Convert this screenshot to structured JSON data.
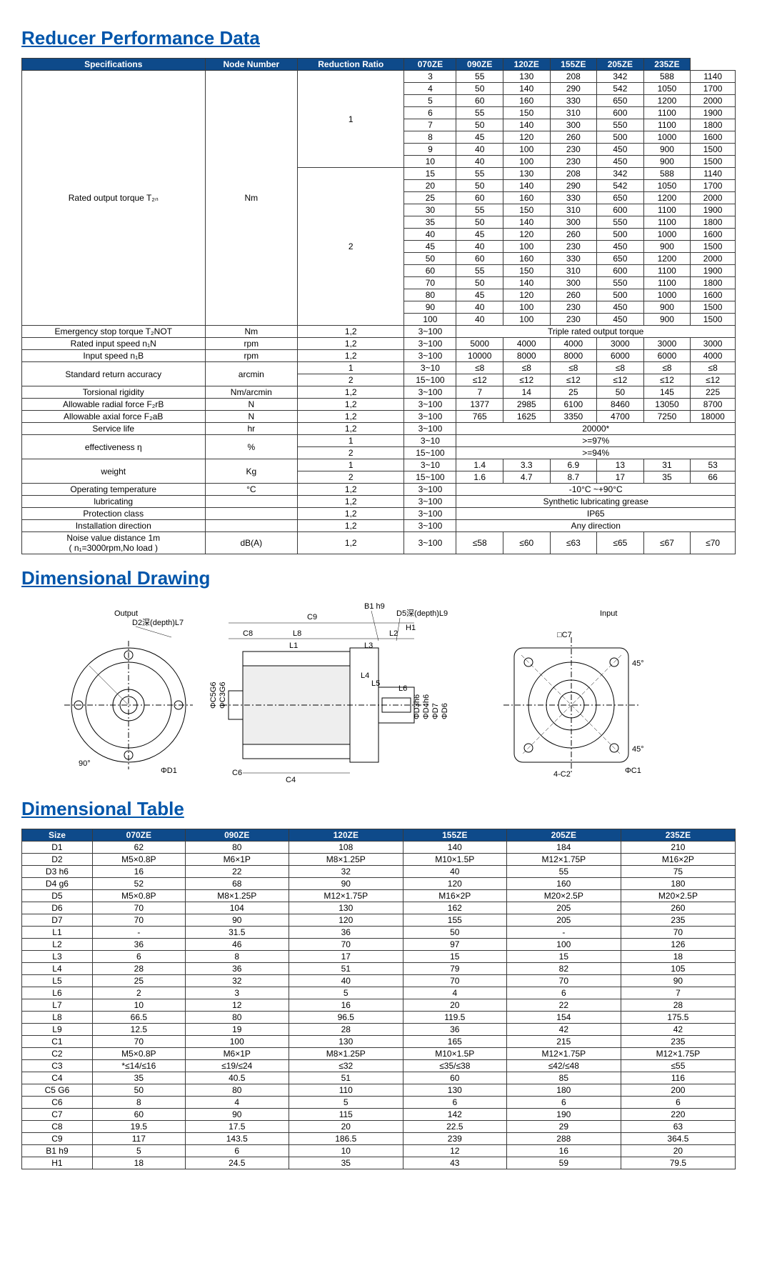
{
  "titles": {
    "perf": "Reducer Performance Data",
    "drawing": "Dimensional Drawing",
    "dimtable": "Dimensional Table"
  },
  "perf": {
    "headers": [
      "Specifications",
      "Node Number",
      "Reduction Ratio",
      "070ZE",
      "090ZE",
      "120ZE",
      "155ZE",
      "205ZE",
      "235ZE"
    ],
    "torqueLabel": "Rated output torque T₂ₙ",
    "torqueUnit": "Nm",
    "torqueNode1": "1",
    "torqueNode2": "2",
    "torque1": [
      {
        "r": "3",
        "v": [
          "55",
          "130",
          "208",
          "342",
          "588",
          "1140"
        ]
      },
      {
        "r": "4",
        "v": [
          "50",
          "140",
          "290",
          "542",
          "1050",
          "1700"
        ]
      },
      {
        "r": "5",
        "v": [
          "60",
          "160",
          "330",
          "650",
          "1200",
          "2000"
        ]
      },
      {
        "r": "6",
        "v": [
          "55",
          "150",
          "310",
          "600",
          "1100",
          "1900"
        ]
      },
      {
        "r": "7",
        "v": [
          "50",
          "140",
          "300",
          "550",
          "1100",
          "1800"
        ]
      },
      {
        "r": "8",
        "v": [
          "45",
          "120",
          "260",
          "500",
          "1000",
          "1600"
        ]
      },
      {
        "r": "9",
        "v": [
          "40",
          "100",
          "230",
          "450",
          "900",
          "1500"
        ]
      },
      {
        "r": "10",
        "v": [
          "40",
          "100",
          "230",
          "450",
          "900",
          "1500"
        ]
      }
    ],
    "torque2": [
      {
        "r": "15",
        "v": [
          "55",
          "130",
          "208",
          "342",
          "588",
          "1140"
        ]
      },
      {
        "r": "20",
        "v": [
          "50",
          "140",
          "290",
          "542",
          "1050",
          "1700"
        ]
      },
      {
        "r": "25",
        "v": [
          "60",
          "160",
          "330",
          "650",
          "1200",
          "2000"
        ]
      },
      {
        "r": "30",
        "v": [
          "55",
          "150",
          "310",
          "600",
          "1100",
          "1900"
        ]
      },
      {
        "r": "35",
        "v": [
          "50",
          "140",
          "300",
          "550",
          "1100",
          "1800"
        ]
      },
      {
        "r": "40",
        "v": [
          "45",
          "120",
          "260",
          "500",
          "1000",
          "1600"
        ]
      },
      {
        "r": "45",
        "v": [
          "40",
          "100",
          "230",
          "450",
          "900",
          "1500"
        ]
      },
      {
        "r": "50",
        "v": [
          "60",
          "160",
          "330",
          "650",
          "1200",
          "2000"
        ]
      },
      {
        "r": "60",
        "v": [
          "55",
          "150",
          "310",
          "600",
          "1100",
          "1900"
        ]
      },
      {
        "r": "70",
        "v": [
          "50",
          "140",
          "300",
          "550",
          "1100",
          "1800"
        ]
      },
      {
        "r": "80",
        "v": [
          "45",
          "120",
          "260",
          "500",
          "1000",
          "1600"
        ]
      },
      {
        "r": "90",
        "v": [
          "40",
          "100",
          "230",
          "450",
          "900",
          "1500"
        ]
      },
      {
        "r": "100",
        "v": [
          "40",
          "100",
          "230",
          "450",
          "900",
          "1500"
        ]
      }
    ],
    "rows": [
      {
        "spec": "Emergency stop torque T₂NOT",
        "unit": "Nm",
        "node": "1,2",
        "ratio": "3~100",
        "span": "Triple rated output torque"
      },
      {
        "spec": "Rated input speed n₁N",
        "unit": "rpm",
        "node": "1,2",
        "ratio": "3~100",
        "v": [
          "5000",
          "4000",
          "4000",
          "3000",
          "3000",
          "3000"
        ]
      },
      {
        "spec": "Input speed n₁B",
        "unit": "rpm",
        "node": "1,2",
        "ratio": "3~100",
        "v": [
          "10000",
          "8000",
          "8000",
          "6000",
          "6000",
          "4000"
        ]
      },
      {
        "spec": "Standard return accuracy",
        "unit": "arcmin",
        "rows2": [
          {
            "node": "1",
            "ratio": "3~10",
            "v": [
              "≤8",
              "≤8",
              "≤8",
              "≤8",
              "≤8",
              "≤8"
            ]
          },
          {
            "node": "2",
            "ratio": "15~100",
            "v": [
              "≤12",
              "≤12",
              "≤12",
              "≤12",
              "≤12",
              "≤12"
            ]
          }
        ]
      },
      {
        "spec": "Torsional rigidity",
        "unit": "Nm/arcmin",
        "node": "1,2",
        "ratio": "3~100",
        "v": [
          "7",
          "14",
          "25",
          "50",
          "145",
          "225"
        ]
      },
      {
        "spec": "Allowable radial force F₂rB",
        "unit": "N",
        "node": "1,2",
        "ratio": "3~100",
        "v": [
          "1377",
          "2985",
          "6100",
          "8460",
          "13050",
          "8700"
        ]
      },
      {
        "spec": "Allowable axial force F₂aB",
        "unit": "N",
        "node": "1,2",
        "ratio": "3~100",
        "v": [
          "765",
          "1625",
          "3350",
          "4700",
          "7250",
          "18000"
        ]
      },
      {
        "spec": "Service life",
        "unit": "hr",
        "node": "1,2",
        "ratio": "3~100",
        "span": "20000*"
      },
      {
        "spec": "effectiveness η",
        "unit": "%",
        "rows2": [
          {
            "node": "1",
            "ratio": "3~10",
            "span": ">=97%"
          },
          {
            "node": "2",
            "ratio": "15~100",
            "span": ">=94%"
          }
        ]
      },
      {
        "spec": "weight",
        "unit": "Kg",
        "rows2": [
          {
            "node": "1",
            "ratio": "3~10",
            "v": [
              "1.4",
              "3.3",
              "6.9",
              "13",
              "31",
              "53"
            ]
          },
          {
            "node": "2",
            "ratio": "15~100",
            "v": [
              "1.6",
              "4.7",
              "8.7",
              "17",
              "35",
              "66"
            ]
          }
        ]
      },
      {
        "spec": "Operating temperature",
        "unit": "°C",
        "node": "1,2",
        "ratio": "3~100",
        "span": "-10°C ~+90°C"
      },
      {
        "spec": "lubricating",
        "unit": "",
        "node": "1,2",
        "ratio": "3~100",
        "span": "Synthetic lubricating grease"
      },
      {
        "spec": "Protection class",
        "unit": "",
        "node": "1,2",
        "ratio": "3~100",
        "span": "IP65"
      },
      {
        "spec": "Installation direction",
        "unit": "",
        "node": "1,2",
        "ratio": "3~100",
        "span": "Any direction"
      },
      {
        "spec": "Noise value distance 1m\n( n₁=3000rpm,No load )",
        "unit": "dB(A)",
        "node": "1,2",
        "ratio": "3~100",
        "v": [
          "≤58",
          "≤60",
          "≤63",
          "≤65",
          "≤67",
          "≤70"
        ]
      }
    ]
  },
  "drawing": {
    "outputLabel": "Output",
    "inputLabel": "Input",
    "d2label": "D2深(depth)L7",
    "d5label": "D5深(depth)L9",
    "labels": [
      "ΦD1",
      "C6",
      "C4",
      "C8",
      "L8",
      "L1",
      "L2",
      "L3",
      "C9",
      "ΦC5G6",
      "ΦC3G6",
      "L4",
      "L5",
      "L6",
      "ΦD3h6",
      "ΦD4h6",
      "ΦD7",
      "ΦD6",
      "B1 h9",
      "□C7",
      "H1",
      "4-C2",
      "ΦC1",
      "90°",
      "45°",
      "45°"
    ]
  },
  "dim": {
    "headers": [
      "Size",
      "070ZE",
      "090ZE",
      "120ZE",
      "155ZE",
      "205ZE",
      "235ZE"
    ],
    "rows": [
      {
        "k": "D1",
        "v": [
          "62",
          "80",
          "108",
          "140",
          "184",
          "210"
        ]
      },
      {
        "k": "D2",
        "v": [
          "M5×0.8P",
          "M6×1P",
          "M8×1.25P",
          "M10×1.5P",
          "M12×1.75P",
          "M16×2P"
        ]
      },
      {
        "k": "D3 h6",
        "v": [
          "16",
          "22",
          "32",
          "40",
          "55",
          "75"
        ]
      },
      {
        "k": "D4 g6",
        "v": [
          "52",
          "68",
          "90",
          "120",
          "160",
          "180"
        ]
      },
      {
        "k": "D5",
        "v": [
          "M5×0.8P",
          "M8×1.25P",
          "M12×1.75P",
          "M16×2P",
          "M20×2.5P",
          "M20×2.5P"
        ]
      },
      {
        "k": "D6",
        "v": [
          "70",
          "104",
          "130",
          "162",
          "205",
          "260"
        ]
      },
      {
        "k": "D7",
        "v": [
          "70",
          "90",
          "120",
          "155",
          "205",
          "235"
        ]
      },
      {
        "k": "L1",
        "v": [
          "-",
          "31.5",
          "36",
          "50",
          "-",
          "70"
        ]
      },
      {
        "k": "L2",
        "v": [
          "36",
          "46",
          "70",
          "97",
          "100",
          "126"
        ]
      },
      {
        "k": "L3",
        "v": [
          "6",
          "8",
          "17",
          "15",
          "15",
          "18"
        ]
      },
      {
        "k": "L4",
        "v": [
          "28",
          "36",
          "51",
          "79",
          "82",
          "105"
        ]
      },
      {
        "k": "L5",
        "v": [
          "25",
          "32",
          "40",
          "70",
          "70",
          "90"
        ]
      },
      {
        "k": "L6",
        "v": [
          "2",
          "3",
          "5",
          "4",
          "6",
          "7"
        ]
      },
      {
        "k": "L7",
        "v": [
          "10",
          "12",
          "16",
          "20",
          "22",
          "28"
        ]
      },
      {
        "k": "L8",
        "v": [
          "66.5",
          "80",
          "96.5",
          "119.5",
          "154",
          "175.5"
        ]
      },
      {
        "k": "L9",
        "v": [
          "12.5",
          "19",
          "28",
          "36",
          "42",
          "42"
        ]
      },
      {
        "k": "C1",
        "v": [
          "70",
          "100",
          "130",
          "165",
          "215",
          "235"
        ]
      },
      {
        "k": "C2",
        "v": [
          "M5×0.8P",
          "M6×1P",
          "M8×1.25P",
          "M10×1.5P",
          "M12×1.75P",
          "M12×1.75P"
        ]
      },
      {
        "k": "C3",
        "v": [
          "*≤14/≤16",
          "≤19/≤24",
          "≤32",
          "≤35/≤38",
          "≤42/≤48",
          "≤55"
        ]
      },
      {
        "k": "C4",
        "v": [
          "35",
          "40.5",
          "51",
          "60",
          "85",
          "116"
        ]
      },
      {
        "k": "C5 G6",
        "v": [
          "50",
          "80",
          "110",
          "130",
          "180",
          "200"
        ]
      },
      {
        "k": "C6",
        "v": [
          "8",
          "4",
          "5",
          "6",
          "6",
          "6"
        ]
      },
      {
        "k": "C7",
        "v": [
          "60",
          "90",
          "115",
          "142",
          "190",
          "220"
        ]
      },
      {
        "k": "C8",
        "v": [
          "19.5",
          "17.5",
          "20",
          "22.5",
          "29",
          "63"
        ]
      },
      {
        "k": "C9",
        "v": [
          "117",
          "143.5",
          "186.5",
          "239",
          "288",
          "364.5"
        ]
      },
      {
        "k": "B1 h9",
        "v": [
          "5",
          "6",
          "10",
          "12",
          "16",
          "20"
        ]
      },
      {
        "k": "H1",
        "v": [
          "18",
          "24.5",
          "35",
          "43",
          "59",
          "79.5"
        ]
      }
    ]
  }
}
